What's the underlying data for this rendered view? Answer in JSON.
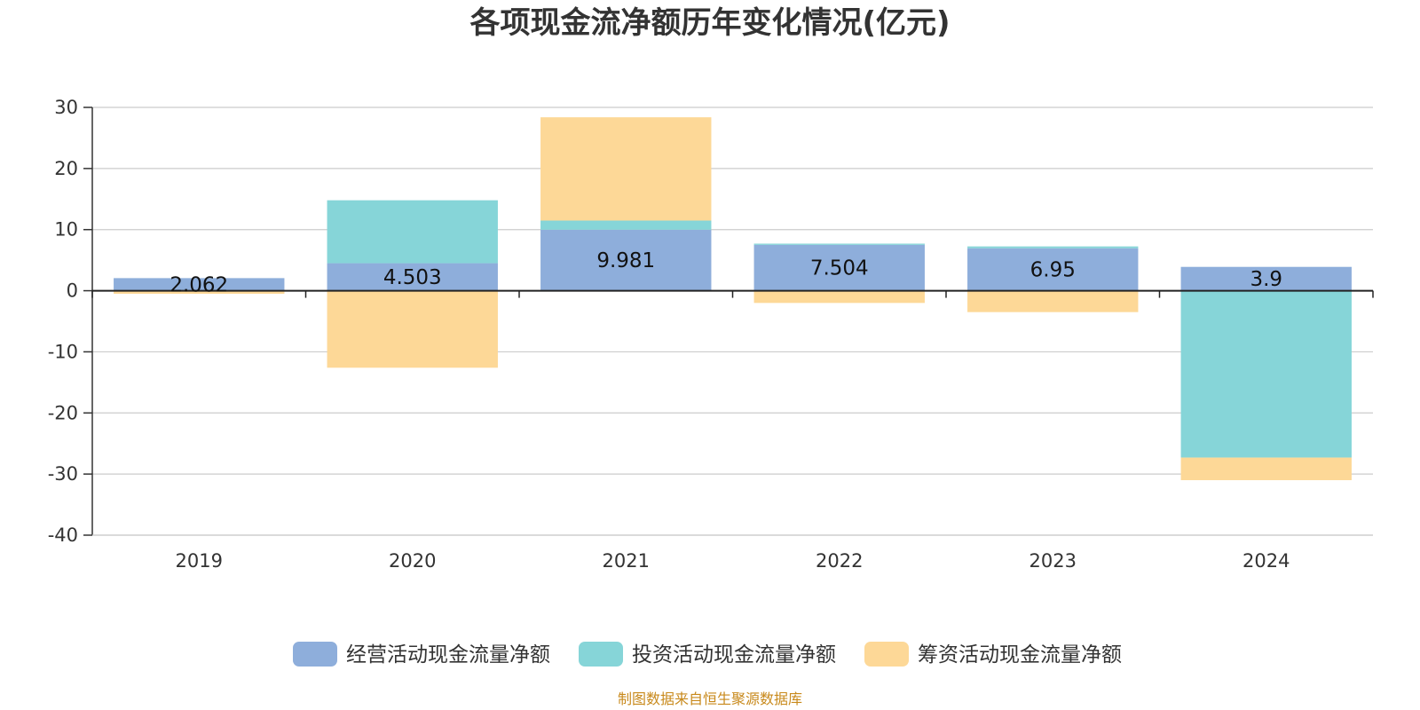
{
  "chart_data": {
    "type": "bar",
    "stacked": true,
    "title": "各项现金流净额历年变化情况(亿元)",
    "categories": [
      "2019",
      "2020",
      "2021",
      "2022",
      "2023",
      "2024"
    ],
    "series": [
      {
        "name": "经营活动现金流量净额",
        "values": [
          2.062,
          4.503,
          9.981,
          7.504,
          6.95,
          3.9
        ],
        "color": "#8eaedb",
        "show_labels": true
      },
      {
        "name": "投资活动现金流量净额",
        "values": [
          -0.1,
          10.3,
          1.5,
          0.2,
          0.3,
          -27.3
        ],
        "color": "#86d5d8",
        "show_labels": false
      },
      {
        "name": "筹资活动现金流量净额",
        "values": [
          -0.4,
          -12.6,
          16.9,
          -2.0,
          -3.5,
          -3.7
        ],
        "color": "#fdd897",
        "show_labels": false
      }
    ],
    "data_labels": [
      "2.062",
      "4.503",
      "9.981",
      "7.504",
      "6.95",
      "3.9"
    ],
    "ylim": [
      -40,
      30
    ],
    "yticks": [
      30,
      20,
      10,
      0,
      -10,
      -20,
      -30,
      -40
    ],
    "ytick_labels": [
      "30",
      "20",
      "10",
      "0",
      "-10",
      "-20",
      "-30",
      "-40"
    ],
    "grid": true,
    "legend_position": "bottom-center",
    "source": "制图数据来自恒生聚源数据库"
  }
}
